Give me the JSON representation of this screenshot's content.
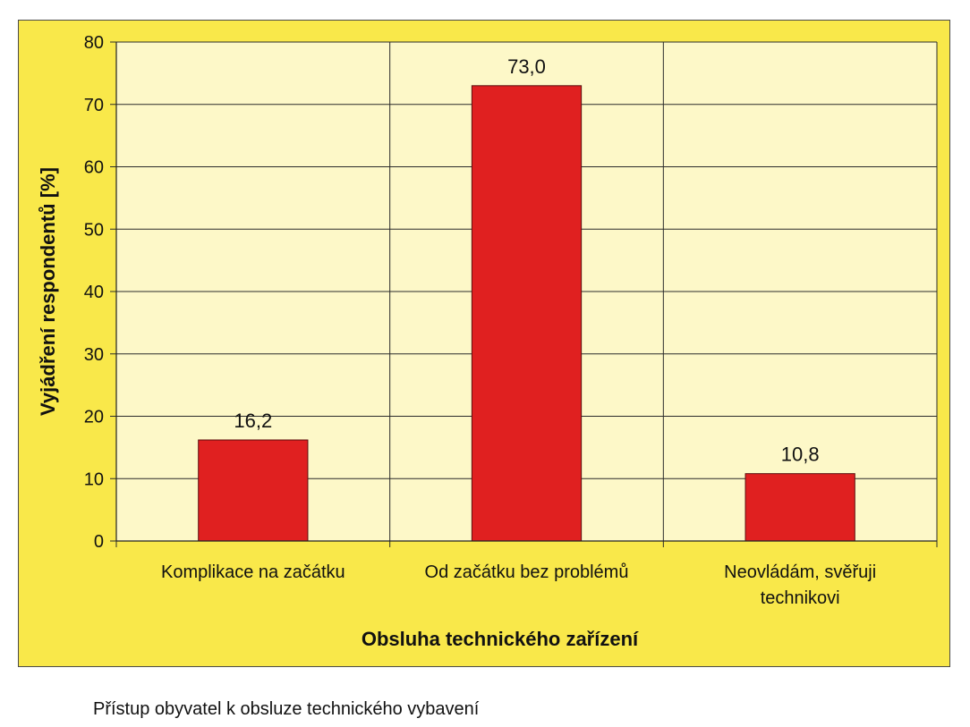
{
  "caption": "Přístup obyvatel k obsluze technického vybavení",
  "chart_data": {
    "type": "bar",
    "categories": [
      "Komplikace na začátku",
      "Od začátku bez problémů",
      "Neovládám, svěřuji technikovi"
    ],
    "category_lines": [
      [
        "Komplikace na začátku"
      ],
      [
        "Od začátku bez problémů"
      ],
      [
        "Neovládám, svěřuji",
        "technikovi"
      ]
    ],
    "values": [
      16.2,
      73.0,
      10.8
    ],
    "data_labels": [
      "16,2",
      "73,0",
      "10,8"
    ],
    "xlabel": "Obsluha technického zařízení",
    "ylabel": "Vyjádření respondentů [%]",
    "ylim": [
      0,
      80
    ],
    "yticks": [
      0,
      10,
      20,
      30,
      40,
      50,
      60,
      70,
      80
    ],
    "grid": true,
    "colors": {
      "bar": "#e02020",
      "bar_border": "#5a0f0f",
      "plot_background": "#fdf8c8",
      "frame_background": "#f9e84a",
      "gridline": "#2b2b2b"
    }
  }
}
